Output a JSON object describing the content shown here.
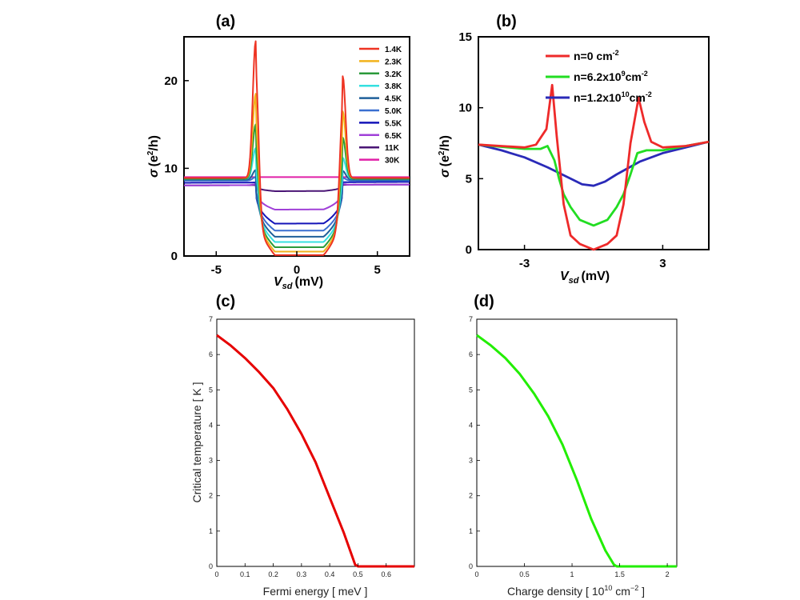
{
  "chart_data": [
    {
      "panel": "(a)",
      "type": "line",
      "xlabel_var": "V",
      "xlabel_sub": "sd",
      "xlabel_unit": "(mV)",
      "ylabel_sym": "σ",
      "ylabel_open": "(e",
      "ylabel_sup": "2",
      "ylabel_close": "/h)",
      "xlim": [
        -7,
        7
      ],
      "ylim": [
        0,
        25
      ],
      "xticks": [
        "-5",
        "0",
        "5"
      ],
      "xtick_values": [
        -5,
        0,
        5
      ],
      "yticks": [
        "0",
        "10",
        "20"
      ],
      "ytick_values": [
        0,
        10,
        20
      ],
      "legend_position": "top-right",
      "series": [
        {
          "name": "1.4K",
          "color": "#ee3322",
          "peak_left": 24.5,
          "peak_right": 20.5,
          "plateau": 8.9,
          "bottom": 0.1
        },
        {
          "name": "2.3K",
          "color": "#f2b21b",
          "peak_left": 18.5,
          "peak_right": 16.5,
          "plateau": 8.9,
          "bottom": 0.5
        },
        {
          "name": "3.2K",
          "color": "#2b9a3a",
          "peak_left": 15.0,
          "peak_right": 13.5,
          "plateau": 8.8,
          "bottom": 1.0
        },
        {
          "name": "3.8K",
          "color": "#34e0e0",
          "peak_left": 12.3,
          "peak_right": 11.2,
          "plateau": 8.8,
          "bottom": 1.6
        },
        {
          "name": "4.5K",
          "color": "#1f5f9a",
          "peak_left": 9.8,
          "peak_right": 9.7,
          "plateau": 8.7,
          "bottom": 2.2
        },
        {
          "name": "5.0K",
          "color": "#3a6fd0",
          "peak_left": 9.0,
          "peak_right": 8.9,
          "plateau": 8.6,
          "bottom": 2.9
        },
        {
          "name": "5.5K",
          "color": "#1414b8",
          "peak_left": 8.4,
          "peak_right": 8.4,
          "plateau": 8.4,
          "bottom": 3.7
        },
        {
          "name": "6.5K",
          "color": "#a040d8",
          "peak_left": 8.2,
          "peak_right": 8.2,
          "plateau": 8.1,
          "bottom": 5.3
        },
        {
          "name": "11K",
          "color": "#4a1575",
          "peak_left": 7.6,
          "peak_right": 7.6,
          "plateau": 8.1,
          "bottom": 7.4
        },
        {
          "name": "30K",
          "color": "#e020a8",
          "peak_left": 9.0,
          "peak_right": 9.0,
          "plateau": 9.0,
          "bottom": 9.0
        }
      ]
    },
    {
      "panel": "(b)",
      "type": "line",
      "xlabel_var": "V",
      "xlabel_sub": "sd",
      "xlabel_unit": "(mV)",
      "ylabel_sym": "σ",
      "ylabel_open": "(e",
      "ylabel_sup": "2",
      "ylabel_close": "/h)",
      "xlim": [
        -5,
        5
      ],
      "ylim": [
        0,
        15
      ],
      "xticks": [
        "-3",
        "3"
      ],
      "xtick_values": [
        -3,
        3
      ],
      "yticks": [
        "0",
        "5",
        "10",
        "15"
      ],
      "ytick_values": [
        0,
        5,
        10,
        15
      ],
      "legend_position": "top-right",
      "series": [
        {
          "name": "n=0 cm",
          "sup": "-2",
          "color": "#ee2a2a",
          "x": [
            -5,
            -3.0,
            -2.5,
            -2.05,
            -1.8,
            -1.6,
            -1.3,
            -1.0,
            -0.6,
            0,
            0.6,
            1.0,
            1.3,
            1.6,
            1.95,
            2.2,
            2.5,
            3.0,
            4.0,
            5
          ],
          "y": [
            7.4,
            7.2,
            7.4,
            8.5,
            11.6,
            8.0,
            3.2,
            1.0,
            0.4,
            0.0,
            0.4,
            1.0,
            3.2,
            7.5,
            10.7,
            9.0,
            7.6,
            7.2,
            7.3,
            7.6
          ]
        },
        {
          "name": "n=6.2x10",
          "sup": "9",
          "unit": "cm",
          "sup2": "-2",
          "color": "#22dd22",
          "x": [
            -5,
            -3.0,
            -2.3,
            -2.0,
            -1.7,
            -1.5,
            -1.3,
            -1.0,
            -0.6,
            0,
            0.6,
            1.0,
            1.3,
            1.6,
            1.9,
            2.3,
            3.0,
            4.0,
            5
          ],
          "y": [
            7.4,
            7.1,
            7.1,
            7.3,
            6.3,
            5.0,
            3.9,
            3.0,
            2.1,
            1.7,
            2.1,
            3.0,
            3.9,
            5.3,
            6.8,
            7.0,
            7.0,
            7.3,
            7.6
          ]
        },
        {
          "name": "n=1.2x10",
          "sup": "10",
          "unit": "cm",
          "sup2": "-2",
          "color": "#2a2ab8",
          "x": [
            -5,
            -4,
            -3,
            -2,
            -1,
            -0.5,
            0,
            0.5,
            1,
            2,
            3,
            4,
            5
          ],
          "y": [
            7.4,
            7.0,
            6.5,
            5.8,
            5.0,
            4.6,
            4.5,
            4.8,
            5.3,
            6.2,
            6.8,
            7.2,
            7.6
          ]
        }
      ]
    },
    {
      "panel": "(c)",
      "type": "line",
      "xlabel": "Fermi energy [ meV ]",
      "ylabel": "Critical temperature [ K ]",
      "xlim": [
        0,
        0.7
      ],
      "ylim": [
        0,
        7
      ],
      "xticks": [
        "0",
        "0.1",
        "0.2",
        "0.3",
        "0.4",
        "0.5",
        "0.6"
      ],
      "xtick_values": [
        0,
        0.1,
        0.2,
        0.3,
        0.4,
        0.5,
        0.6
      ],
      "yticks": [
        "0",
        "1",
        "2",
        "3",
        "4",
        "5",
        "6",
        "7"
      ],
      "ytick_values": [
        0,
        1,
        2,
        3,
        4,
        5,
        6,
        7
      ],
      "series": [
        {
          "name": "Tc",
          "color": "#e60000",
          "x": [
            0,
            0.05,
            0.1,
            0.15,
            0.2,
            0.25,
            0.3,
            0.35,
            0.4,
            0.45,
            0.49,
            0.5,
            0.7
          ],
          "y": [
            6.55,
            6.25,
            5.9,
            5.5,
            5.05,
            4.45,
            3.75,
            2.95,
            1.95,
            0.95,
            0.05,
            0,
            0
          ]
        }
      ]
    },
    {
      "panel": "(d)",
      "type": "line",
      "xlabel_pre": "Charge density [ 10",
      "xlabel_sup": "10",
      "xlabel_mid": " cm",
      "xlabel_sup2": "−2",
      "xlabel_post": " ]",
      "ylabel": "",
      "xlim": [
        0,
        2.1
      ],
      "ylim": [
        0,
        7
      ],
      "xticks": [
        "0",
        "0.5",
        "1",
        "1.5",
        "2"
      ],
      "xtick_values": [
        0,
        0.5,
        1,
        1.5,
        2
      ],
      "yticks": [
        "0",
        "1",
        "2",
        "3",
        "4",
        "5",
        "6",
        "7"
      ],
      "ytick_values": [
        0,
        1,
        2,
        3,
        4,
        5,
        6,
        7
      ],
      "series": [
        {
          "name": "Tc",
          "color": "#22ee00",
          "x": [
            0,
            0.15,
            0.3,
            0.45,
            0.6,
            0.75,
            0.9,
            1.05,
            1.2,
            1.35,
            1.44,
            1.47,
            2.1
          ],
          "y": [
            6.55,
            6.25,
            5.9,
            5.45,
            4.9,
            4.25,
            3.45,
            2.45,
            1.35,
            0.45,
            0.05,
            0,
            0
          ]
        }
      ]
    }
  ]
}
